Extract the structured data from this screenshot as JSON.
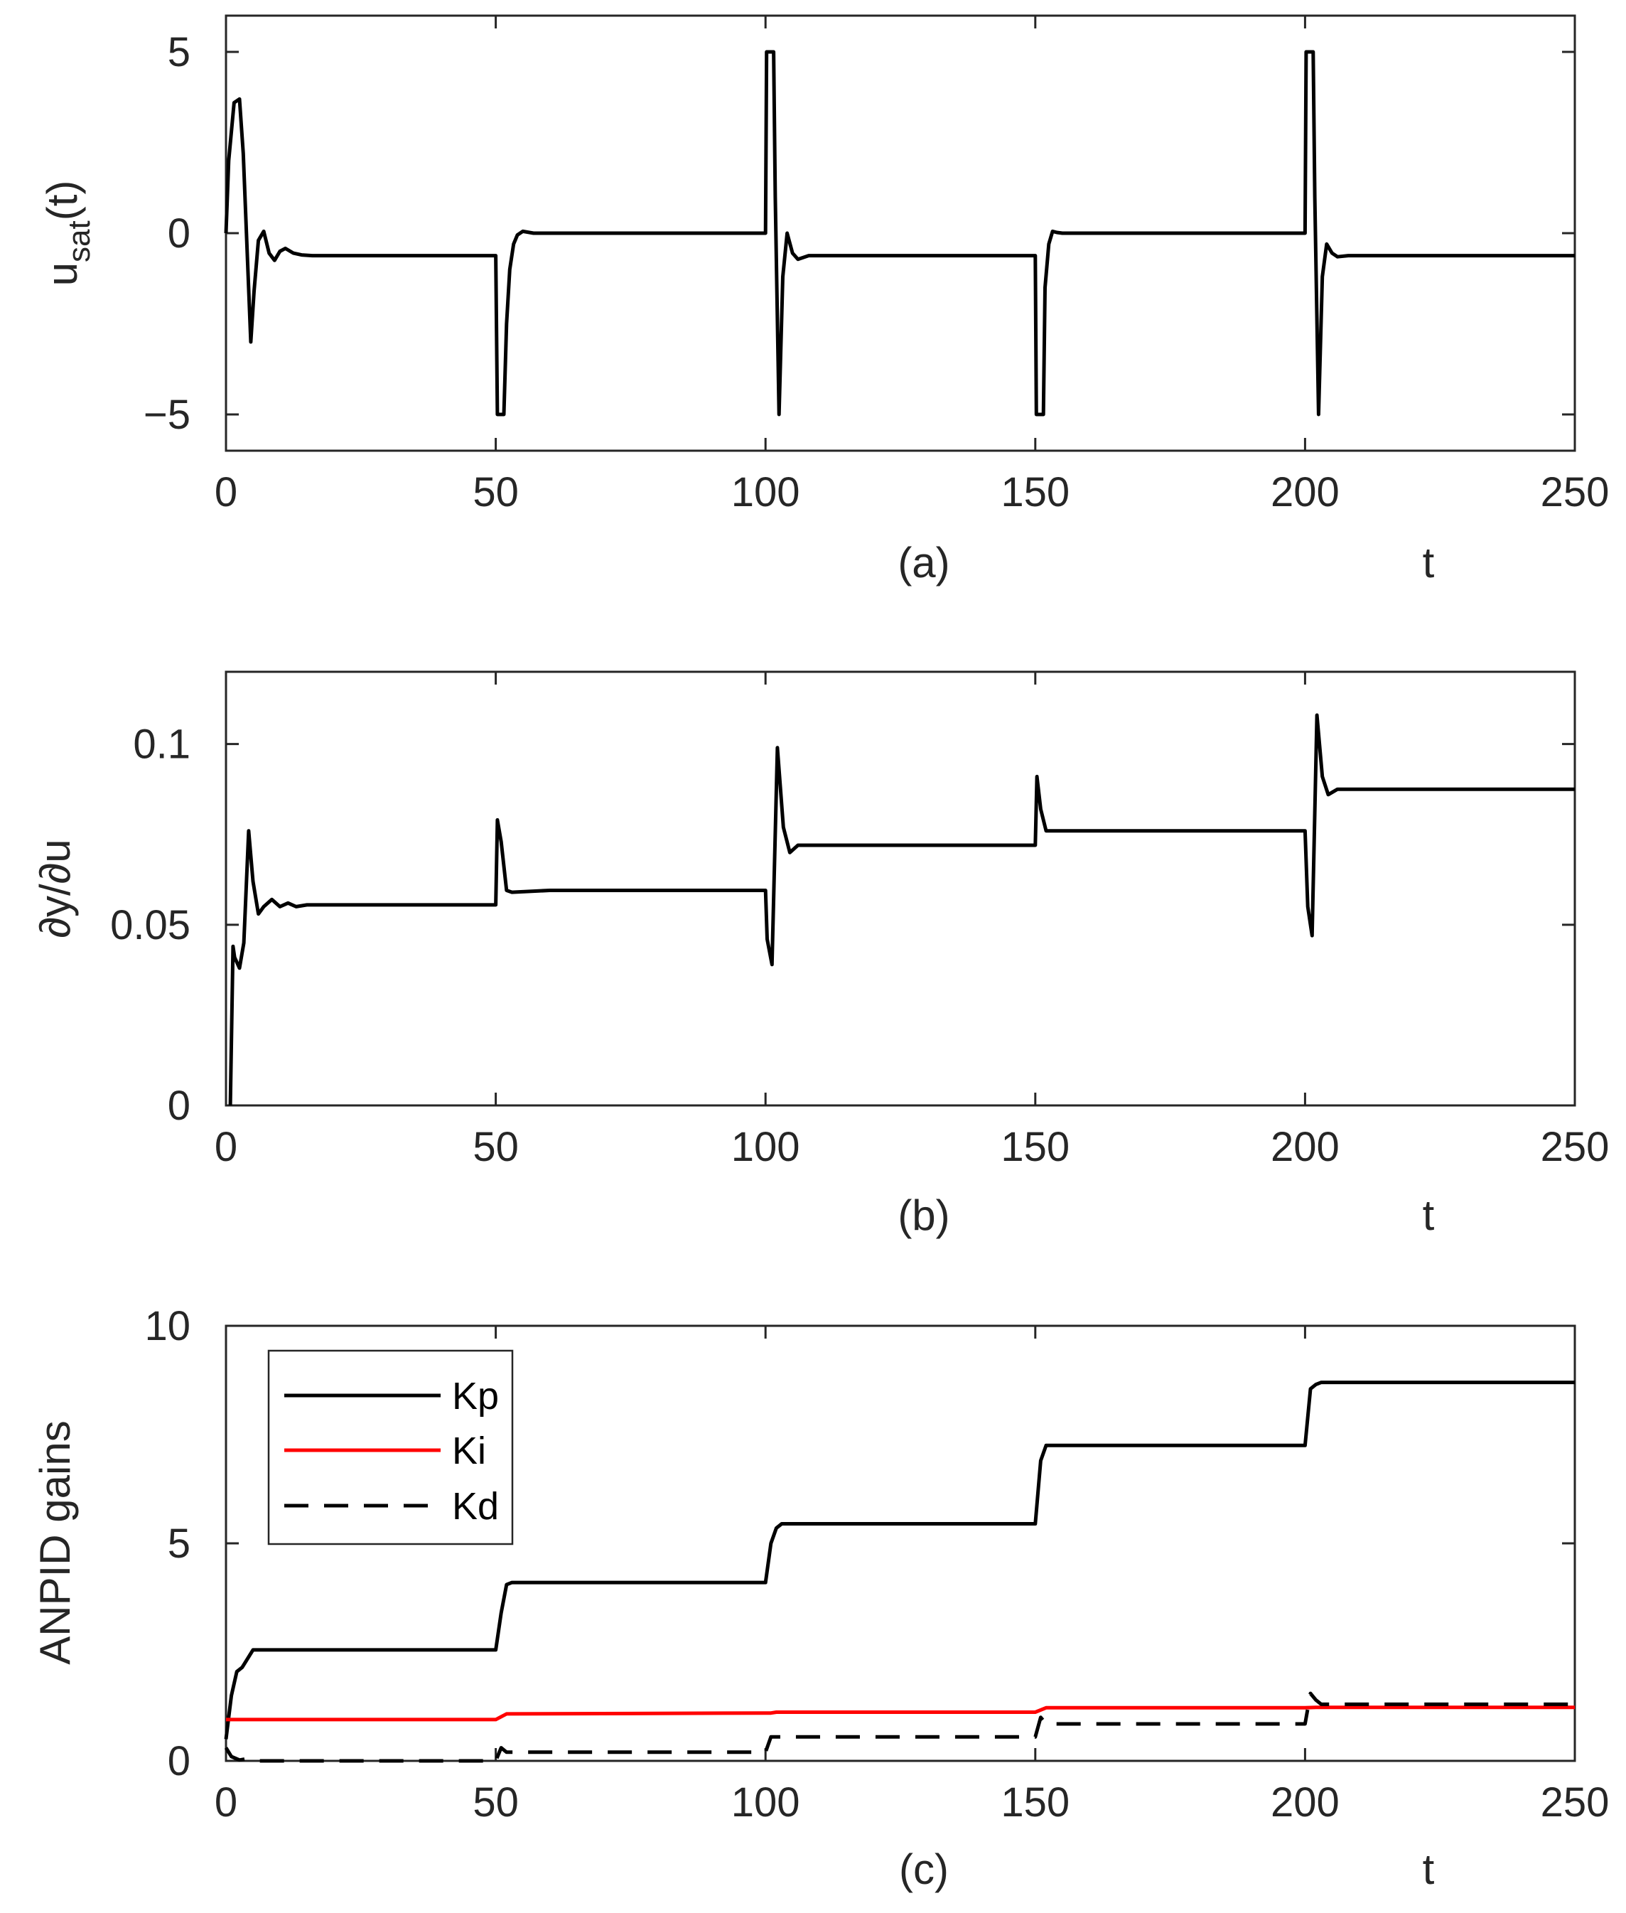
{
  "chart_data": [
    {
      "type": "line",
      "panel_label": "(a)",
      "xlabel": "t",
      "ylabel": "u",
      "ylabel_sub": "sat",
      "ylabel_tail": "(t)",
      "xlim": [
        0,
        250
      ],
      "ylim": [
        -6,
        6
      ],
      "xticks": [
        0,
        50,
        100,
        150,
        200,
        250
      ],
      "xtick_labels": [
        "0",
        "50",
        "100",
        "150",
        "200",
        "250"
      ],
      "yticks": [
        -5,
        0,
        5
      ],
      "ytick_labels": [
        "−5",
        "0",
        "5"
      ],
      "series": [
        {
          "name": "usat",
          "color": "#000000",
          "style": "solid",
          "x": [
            0,
            0.5,
            1.5,
            2.5,
            3.2,
            4.0,
            4.6,
            5.2,
            6.0,
            7.0,
            8.0,
            9.0,
            10.0,
            11.0,
            12.5,
            14,
            16,
            20,
            50,
            50.3,
            51.5,
            52.0,
            52.6,
            53.3,
            54.0,
            55.0,
            57.0,
            60.0,
            100,
            100.2,
            101.5,
            101.8,
            102.5,
            103.2,
            104.0,
            105.0,
            106.0,
            108,
            112,
            150,
            150.2,
            151.5,
            151.8,
            152.5,
            153.2,
            154.0,
            155.0,
            157.0,
            160,
            200,
            200.2,
            201.5,
            201.8,
            202.5,
            203.2,
            204.0,
            205.0,
            206.0,
            208,
            212,
            250
          ],
          "y": [
            0,
            2.0,
            3.6,
            3.7,
            2.2,
            -0.8,
            -3.0,
            -1.6,
            -0.2,
            0.05,
            -0.55,
            -0.75,
            -0.5,
            -0.42,
            -0.55,
            -0.6,
            -0.62,
            -0.62,
            -0.62,
            -5,
            -5,
            -2.5,
            -1.0,
            -0.3,
            -0.05,
            0.05,
            0.0,
            0.0,
            0.0,
            5,
            5,
            1.0,
            -5,
            -1.2,
            0.0,
            -0.55,
            -0.72,
            -0.62,
            -0.62,
            -0.62,
            -5,
            -5,
            -1.5,
            -0.3,
            0.05,
            0.02,
            0.0,
            0.0,
            0.0,
            0.0,
            5,
            5,
            1.0,
            -5,
            -1.2,
            -0.3,
            -0.55,
            -0.65,
            -0.62,
            -0.62,
            -0.62
          ]
        }
      ]
    },
    {
      "type": "line",
      "panel_label": "(b)",
      "xlabel": "t",
      "ylabel": "∂y/∂u",
      "xlim": [
        0,
        250
      ],
      "ylim": [
        0,
        0.12
      ],
      "xticks": [
        0,
        50,
        100,
        150,
        200,
        250
      ],
      "xtick_labels": [
        "0",
        "50",
        "100",
        "150",
        "200",
        "250"
      ],
      "yticks": [
        0,
        0.05,
        0.1
      ],
      "ytick_labels": [
        "0",
        "0.05",
        "0.1"
      ],
      "series": [
        {
          "name": "dy/du",
          "color": "#000000",
          "style": "solid",
          "x": [
            0.8,
            1.3,
            1.6,
            2.5,
            3.3,
            4.2,
            5.0,
            6.0,
            7.0,
            8.5,
            10,
            11.5,
            13,
            15,
            18,
            50,
            50.3,
            51,
            52,
            53,
            60,
            100,
            100.3,
            101.2,
            102.2,
            103.3,
            104.5,
            106,
            110,
            150,
            150.3,
            151,
            152,
            160,
            200,
            200.5,
            201.3,
            202.2,
            203.2,
            204.3,
            206,
            210,
            250
          ],
          "y": [
            0.0,
            0.044,
            0.041,
            0.038,
            0.045,
            0.076,
            0.062,
            0.053,
            0.055,
            0.057,
            0.055,
            0.056,
            0.055,
            0.0555,
            0.0555,
            0.0555,
            0.079,
            0.073,
            0.0595,
            0.059,
            0.0595,
            0.0595,
            0.046,
            0.039,
            0.099,
            0.077,
            0.07,
            0.072,
            0.072,
            0.072,
            0.091,
            0.082,
            0.076,
            0.076,
            0.076,
            0.055,
            0.047,
            0.108,
            0.091,
            0.086,
            0.0875,
            0.0875,
            0.0875
          ]
        }
      ]
    },
    {
      "type": "line",
      "panel_label": "(c)",
      "xlabel": "t",
      "ylabel": "ANPID gains",
      "xlim": [
        0,
        250
      ],
      "ylim": [
        0,
        10
      ],
      "xticks": [
        0,
        50,
        100,
        150,
        200,
        250
      ],
      "xtick_labels": [
        "0",
        "50",
        "100",
        "150",
        "200",
        "250"
      ],
      "yticks": [
        0,
        5,
        10
      ],
      "ytick_labels": [
        "0",
        "5",
        "10"
      ],
      "legend": {
        "location": "top-left",
        "entries": [
          "Kp",
          "Ki",
          "Kd"
        ]
      },
      "series": [
        {
          "name": "Kp",
          "color": "#000000",
          "style": "solid",
          "x": [
            0,
            1.0,
            2.0,
            3.0,
            4.0,
            5.0,
            6.0,
            50,
            51,
            52,
            53,
            100,
            101,
            102,
            103,
            150,
            151,
            152,
            200,
            201,
            202,
            203,
            250
          ],
          "y": [
            0.5,
            1.5,
            2.05,
            2.15,
            2.35,
            2.55,
            2.55,
            2.55,
            3.4,
            4.05,
            4.1,
            4.1,
            5.0,
            5.35,
            5.45,
            5.45,
            6.9,
            7.25,
            7.25,
            8.55,
            8.65,
            8.7,
            8.7
          ]
        },
        {
          "name": "Ki",
          "color": "#ff0000",
          "style": "solid",
          "x": [
            0,
            1,
            5,
            50,
            52,
            100,
            101,
            102,
            150,
            152,
            200,
            202,
            250
          ],
          "y": [
            0.95,
            0.95,
            0.95,
            0.95,
            1.08,
            1.1,
            1.1,
            1.12,
            1.12,
            1.22,
            1.22,
            1.23,
            1.23
          ]
        },
        {
          "name": "Kd",
          "color": "#000000",
          "style": "dashed",
          "x": [
            0,
            1.0,
            2.5,
            4.0,
            6.0,
            8.0,
            50,
            51,
            52,
            100,
            101,
            102,
            150,
            151,
            152,
            200,
            201,
            202,
            203,
            250
          ],
          "y": [
            0.3,
            0.1,
            0.02,
            0.05,
            0.0,
            0.0,
            0.0,
            0.3,
            0.2,
            0.2,
            0.55,
            0.55,
            0.55,
            1.0,
            0.85,
            0.85,
            1.55,
            1.4,
            1.3,
            1.3
          ]
        }
      ]
    }
  ]
}
